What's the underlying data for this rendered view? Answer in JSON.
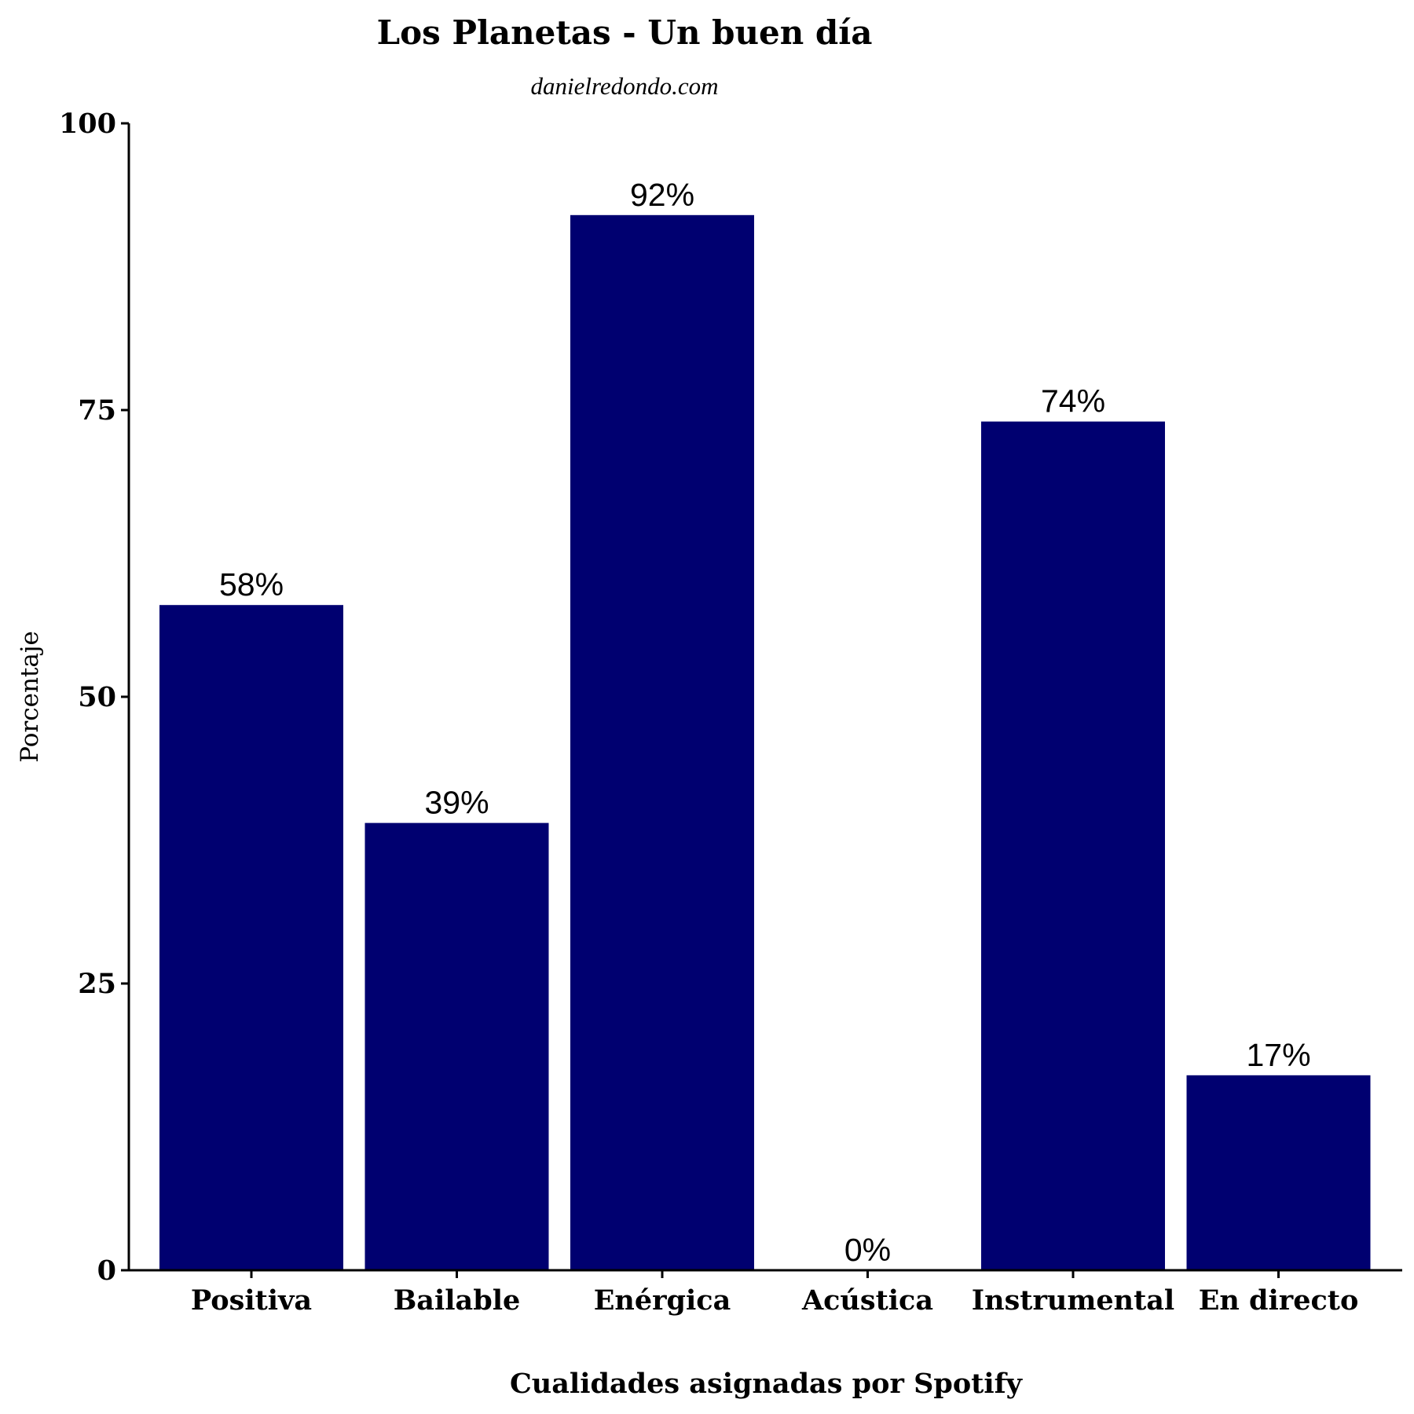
{
  "chart_data": {
    "type": "bar",
    "title": "Los Planetas - Un buen día",
    "subtitle": "danielredondo.com",
    "xlabel": "Cualidades asignadas por Spotify",
    "ylabel": "Porcentaje",
    "categories": [
      "Positiva",
      "Bailable",
      "Enérgica",
      "Acústica",
      "Instrumental",
      "En directo"
    ],
    "values": [
      58,
      39,
      92,
      0,
      74,
      17
    ],
    "data_labels": [
      "58%",
      "39%",
      "92%",
      "0%",
      "74%",
      "17%"
    ],
    "ylim": [
      0,
      100
    ],
    "yticks": [
      0,
      25,
      50,
      75,
      100
    ],
    "ytick_labels": [
      "0",
      "25",
      "50",
      "75",
      "100"
    ],
    "bar_color": "#000070",
    "grid": false,
    "legend": "none"
  }
}
